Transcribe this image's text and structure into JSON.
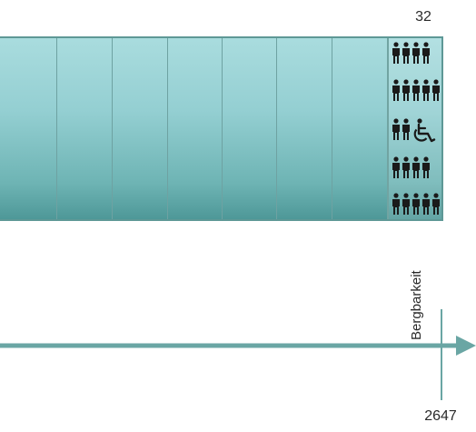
{
  "capacity_count": "32",
  "station_label": "Bergbarkeit",
  "axis_value": "2647",
  "icons": {
    "persons": "person-icon",
    "wheelchair": "wheelchair-icon"
  },
  "colors": {
    "band_top": "#a9dcde",
    "band_bottom": "#4e9898",
    "axis": "#6aa6a4",
    "icon": "#1a1a1a"
  }
}
